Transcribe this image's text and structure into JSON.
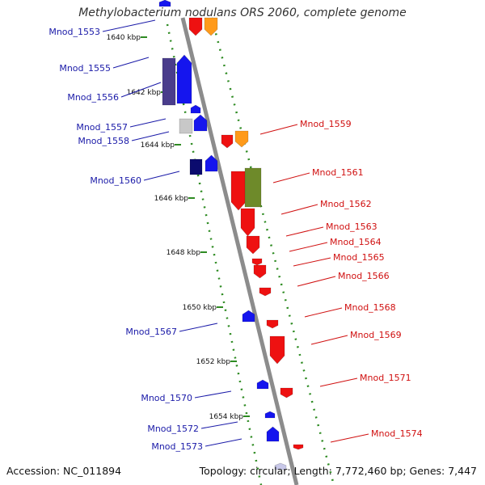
{
  "title": "Methylobacterium nodulans ORS 2060, complete genome",
  "footer": {
    "accession": "Accession: NC_011894",
    "summary": "Topology: circular; Length: 7,772,460 bp; Genes: 7,447"
  },
  "colors": {
    "backbone": "#8c8c8c",
    "dots": "#2e8b22",
    "left_label": "#1a1aa8",
    "right_label": "#d01010",
    "blue": "#1515ee",
    "navy": "#0b0b6e",
    "purple": "#4a3d8c",
    "grey": "#c8c8c8",
    "red": "#ee1111",
    "orange": "#ff9a1a",
    "olive": "#6e8a2a"
  },
  "kbp_ticks": [
    "1640 kbp",
    "1642 kbp",
    "1644 kbp",
    "1646 kbp",
    "1648 kbp",
    "1650 kbp",
    "1652 kbp",
    "1654 kbp"
  ],
  "genes_left": [
    "Mnod_1553",
    "Mnod_1555",
    "Mnod_1556",
    "Mnod_1557",
    "Mnod_1558",
    "Mnod_1560",
    "Mnod_1567",
    "Mnod_1570",
    "Mnod_1572",
    "Mnod_1573"
  ],
  "genes_right": [
    "Mnod_1559",
    "Mnod_1561",
    "Mnod_1562",
    "Mnod_1563",
    "Mnod_1564",
    "Mnod_1565",
    "Mnod_1566",
    "Mnod_1568",
    "Mnod_1569",
    "Mnod_1571",
    "Mnod_1574"
  ]
}
